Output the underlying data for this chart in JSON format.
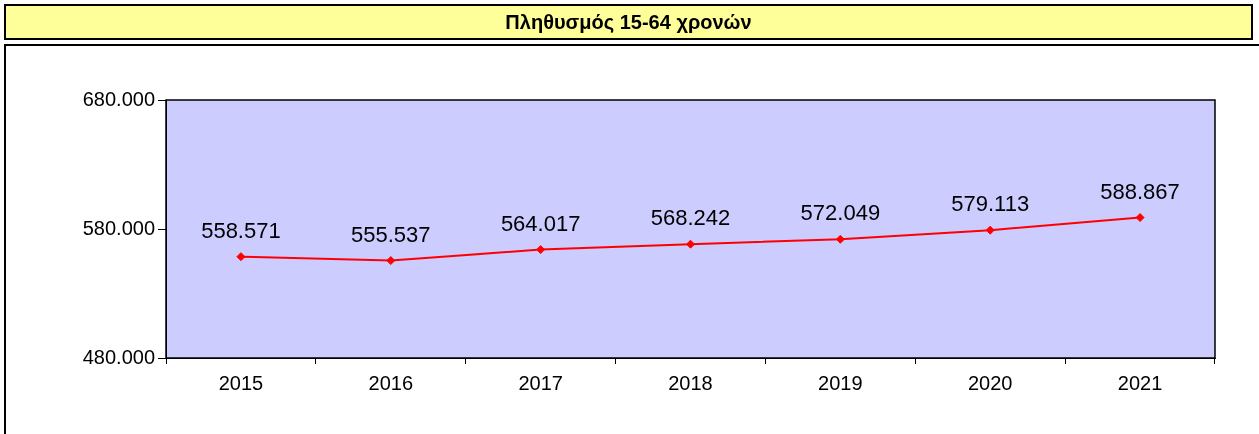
{
  "chart_data": {
    "type": "line",
    "title": "Πληθυσμός 15-64 χρονών",
    "categories": [
      "2015",
      "2016",
      "2017",
      "2018",
      "2019",
      "2020",
      "2021"
    ],
    "series": [
      {
        "color": "#ff0000",
        "values": [
          558571,
          555537,
          564017,
          568242,
          572049,
          579113,
          588867
        ],
        "value_labels": [
          "558.571",
          "555.537",
          "564.017",
          "568.242",
          "572.049",
          "579.113",
          "588.867"
        ]
      }
    ],
    "ylim": [
      480000,
      680000
    ],
    "yticks": [
      {
        "value": 480000,
        "label": "480.000"
      },
      {
        "value": 580000,
        "label": "580.000"
      },
      {
        "value": 680000,
        "label": "680.000"
      }
    ],
    "marker": "diamond",
    "line_style": "solid",
    "legend": false,
    "grid": false
  }
}
